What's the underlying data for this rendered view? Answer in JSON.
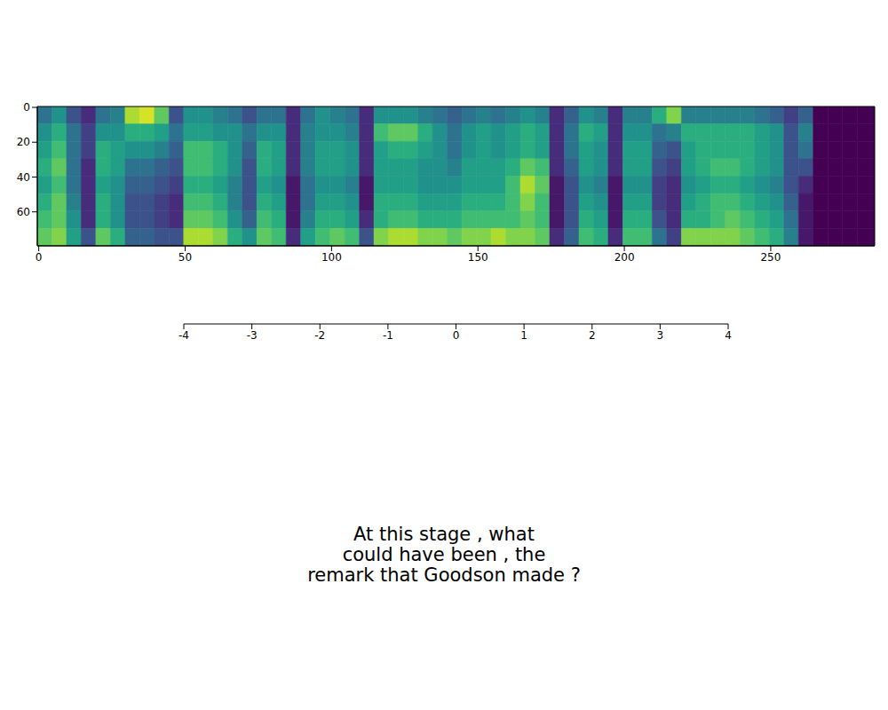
{
  "chart_data": {
    "type": "heatmap",
    "xlim": [
      -0.5,
      285.5
    ],
    "ylim": [
      79.5,
      -0.5
    ],
    "xticks": [
      0,
      50,
      100,
      150,
      200,
      250
    ],
    "yticks": [
      0,
      20,
      40,
      60
    ],
    "x_edges": [
      -0.5,
      4.5,
      9.5,
      14.5,
      19.5,
      24.5,
      29.5,
      34.5,
      39.5,
      44.5,
      49.5,
      54.5,
      59.5,
      64.5,
      69.5,
      74.5,
      79.5,
      84.5,
      89.5,
      94.5,
      99.5,
      104.5,
      109.5,
      114.5,
      119.5,
      124.5,
      129.5,
      134.5,
      139.5,
      144.5,
      149.5,
      154.5,
      159.5,
      164.5,
      169.5,
      174.5,
      179.5,
      184.5,
      189.5,
      194.5,
      199.5,
      204.5,
      209.5,
      214.5,
      219.5,
      224.5,
      229.5,
      234.5,
      239.5,
      244.5,
      249.5,
      254.5,
      259.5,
      264.5,
      269.5,
      274.5,
      279.5,
      285.5
    ],
    "y_edges": [
      -0.5,
      9.5,
      19.5,
      29.5,
      39.5,
      49.5,
      59.5,
      69.5,
      79.5
    ],
    "values": [
      [
        -1,
        0,
        0.5,
        1,
        0.5,
        1,
        1.5,
        2
      ],
      [
        0,
        1,
        1.5,
        2,
        1.5,
        2,
        2,
        2.5
      ],
      [
        -2,
        -1,
        -1,
        -1,
        -1,
        -0.5,
        0,
        0.5
      ],
      [
        -3,
        -2.5,
        -2.5,
        -3,
        -3,
        -3,
        -3,
        -2
      ],
      [
        -1,
        0,
        1,
        1,
        0.5,
        1,
        1,
        2
      ],
      [
        -0.5,
        0,
        0.5,
        0.5,
        0,
        0,
        0,
        1
      ],
      [
        3,
        1,
        0,
        -1,
        -1.5,
        -2,
        -2,
        -1.5
      ],
      [
        3.5,
        1,
        0,
        -1,
        -1.5,
        -2,
        -2,
        -1.5
      ],
      [
        2,
        0.5,
        -0.5,
        -1.5,
        -2,
        -2.5,
        -2.5,
        -2
      ],
      [
        -2,
        -1,
        -1.5,
        -2,
        -2.5,
        -3,
        -3,
        -2
      ],
      [
        0,
        0.5,
        1.5,
        1.5,
        1,
        1.5,
        2,
        3
      ],
      [
        0,
        0.5,
        1.5,
        1.5,
        1,
        1.5,
        2,
        3
      ],
      [
        -0.5,
        0,
        1,
        1,
        0.5,
        1,
        1.5,
        2.5
      ],
      [
        -1,
        0,
        0,
        0,
        -0.5,
        -0.5,
        0,
        1
      ],
      [
        -2,
        -1,
        -1.5,
        -2,
        -2,
        -2,
        -1.5,
        0
      ],
      [
        -1,
        0,
        1,
        1,
        0.5,
        1,
        1.5,
        2
      ],
      [
        -1,
        0,
        0.5,
        0.5,
        0,
        0.5,
        1,
        1.5
      ],
      [
        -3,
        -3,
        -3,
        -3,
        -3.5,
        -3.5,
        -3.5,
        -3
      ],
      [
        -1,
        -0.5,
        -0.5,
        -0.5,
        -1,
        -1,
        -0.5,
        0.5
      ],
      [
        0,
        0,
        0.5,
        0.5,
        0,
        0.5,
        1,
        1.5
      ],
      [
        -0.5,
        0,
        0.5,
        0.5,
        0,
        0.5,
        1,
        2
      ],
      [
        -1,
        -0.5,
        0,
        0,
        -0.5,
        0,
        0.5,
        1.5
      ],
      [
        -3,
        -3,
        -3,
        -3,
        -3.5,
        -3.5,
        -3,
        -2
      ],
      [
        0,
        1.5,
        0.5,
        0.5,
        0.5,
        1,
        1,
        2.5
      ],
      [
        0,
        2,
        1,
        0.5,
        0.5,
        1,
        1.5,
        3
      ],
      [
        0,
        2,
        1,
        0.5,
        0.5,
        1,
        1.5,
        3
      ],
      [
        -0.5,
        1,
        0.5,
        0,
        0,
        0.5,
        1,
        2.5
      ],
      [
        -1,
        0,
        0,
        0,
        0,
        0.5,
        1,
        2.5
      ],
      [
        -1.5,
        -1,
        -1,
        -0.5,
        0,
        0.5,
        1,
        2
      ],
      [
        -1,
        0,
        0,
        0.5,
        0.5,
        1,
        1.5,
        2.5
      ],
      [
        -0.5,
        0.5,
        0.5,
        0.5,
        0.5,
        1,
        1.5,
        2.5
      ],
      [
        -1,
        0,
        0,
        0.5,
        0.5,
        1,
        1.5,
        3
      ],
      [
        -0.5,
        0.5,
        0.5,
        1,
        1.5,
        1.5,
        1.5,
        2.5
      ],
      [
        0,
        1,
        1,
        2,
        3,
        2.5,
        2,
        2.5
      ],
      [
        -0.5,
        0.5,
        0.5,
        1.5,
        2,
        1.5,
        1.5,
        2
      ],
      [
        -3,
        -3,
        -3,
        -3,
        -3.5,
        -3.5,
        -3.5,
        -3
      ],
      [
        -1.5,
        -1,
        -1,
        -1.5,
        -2,
        -2,
        -2,
        -1.5
      ],
      [
        0,
        1,
        0.5,
        0.5,
        0,
        0.5,
        1,
        1.5
      ],
      [
        -0.5,
        0.5,
        0,
        0,
        -0.5,
        0,
        0.5,
        1
      ],
      [
        -3,
        -3,
        -3,
        -3,
        -3.5,
        -3.5,
        -3.5,
        -3
      ],
      [
        -0.5,
        0,
        0.5,
        0.5,
        0,
        0.5,
        1,
        1.5
      ],
      [
        -0.5,
        0,
        0.5,
        0.5,
        0,
        0.5,
        1,
        1.5
      ],
      [
        1,
        -1,
        -1.5,
        -2,
        -2.5,
        -2.5,
        -2,
        -1
      ],
      [
        2.5,
        -0.5,
        -2,
        -2.5,
        -3,
        -3,
        -3,
        -2.5
      ],
      [
        -0.5,
        1,
        0.5,
        0.5,
        0,
        0.5,
        1,
        2.5
      ],
      [
        -0.5,
        1,
        1,
        1,
        0.5,
        1,
        1,
        2.5
      ],
      [
        -0.5,
        1,
        1,
        1.5,
        1,
        1.5,
        1.5,
        2.5
      ],
      [
        -0.5,
        1,
        1,
        1.5,
        1,
        1.5,
        2,
        2.5
      ],
      [
        -0.5,
        1,
        1,
        1,
        0.5,
        1,
        1.5,
        2
      ],
      [
        -1,
        0.5,
        0.5,
        0.5,
        0,
        0.5,
        1,
        1.5
      ],
      [
        -1.5,
        0,
        0,
        0,
        -0.5,
        0,
        0.5,
        1
      ],
      [
        -2.5,
        -2,
        -2,
        -2,
        -2,
        -1.5,
        -1,
        -0.5
      ],
      [
        -1.5,
        -0.5,
        -1,
        -2,
        -3,
        -3.5,
        -3.5,
        -3.5
      ],
      [
        -4,
        -4,
        -4,
        -4,
        -4,
        -4,
        -4,
        -4
      ],
      [
        -4,
        -4,
        -4,
        -4,
        -4,
        -4,
        -4,
        -4
      ],
      [
        -4,
        -4,
        -4,
        -4,
        -4,
        -4,
        -4,
        -4
      ],
      [
        -4,
        -4,
        -4,
        -4,
        -4,
        -4,
        -4,
        -4
      ]
    ],
    "colorbar": {
      "range": [
        -4,
        4
      ],
      "ticks": [
        -4,
        -3,
        -2,
        -1,
        0,
        1,
        2,
        3,
        4
      ]
    },
    "text": [
      "At this stage , what",
      "could have been , the",
      "remark that Goodson made ?"
    ]
  }
}
